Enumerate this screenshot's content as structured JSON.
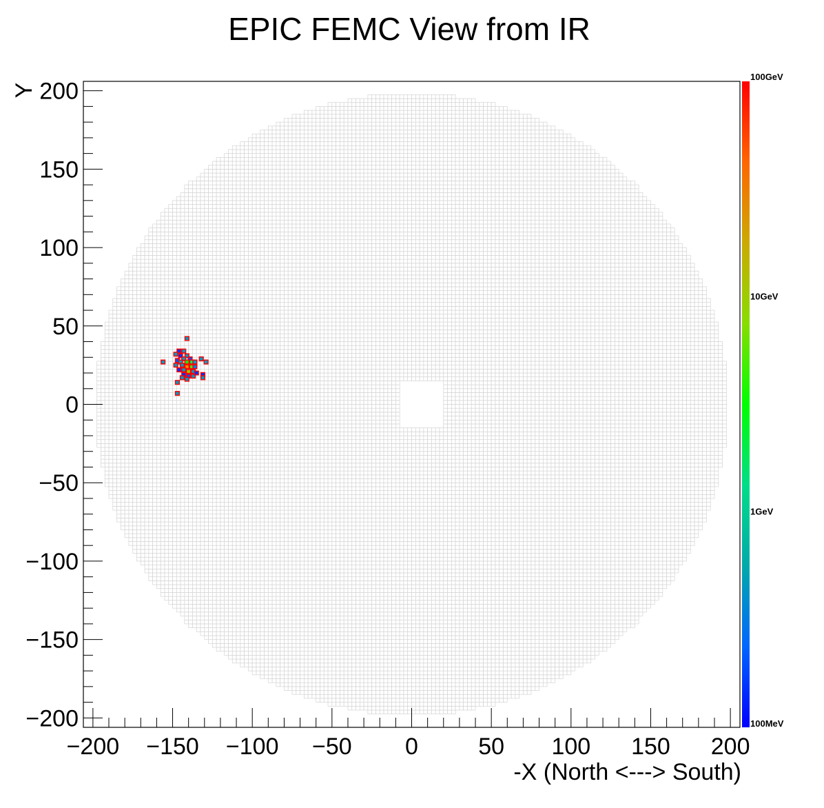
{
  "chart_data": {
    "type": "heatmap",
    "title": "EPIC FEMC View from IR",
    "xlabel": "-X (North <---> South)",
    "ylabel": "Y",
    "xlim": [
      -206,
      206
    ],
    "ylim": [
      -206,
      206
    ],
    "x_ticks": [
      -200,
      -150,
      -100,
      -50,
      0,
      50,
      100,
      150,
      200
    ],
    "y_ticks": [
      -200,
      -150,
      -100,
      -50,
      0,
      50,
      100,
      150,
      200
    ],
    "x_tick_labels": [
      "−200",
      "−150",
      "−100",
      "−50",
      "0",
      "50",
      "100",
      "150",
      "200"
    ],
    "y_tick_labels": [
      "−200",
      "−150",
      "−100",
      "−50",
      "0",
      "50",
      "100",
      "150",
      "200"
    ],
    "colorbar": {
      "scale": "log",
      "range_gev": [
        0.1,
        100
      ],
      "labels": [
        "100GeV",
        "10GeV",
        "1GeV",
        "100MeV"
      ],
      "label_values_gev": [
        100,
        10,
        1,
        0.1
      ],
      "colors": [
        "#0000ff",
        "#0066ff",
        "#00aaaa",
        "#00dd88",
        "#00ff00",
        "#88dd00",
        "#ccaa00",
        "#ff6600",
        "#ff0000"
      ]
    },
    "detector": {
      "cell_size": 2.5,
      "outer_radius": 198,
      "beam_hole": {
        "x": [
          -8,
          20
        ],
        "y": [
          -15,
          15
        ]
      },
      "cell_color": "#d4d4d4"
    },
    "hits": [
      {
        "x": -141,
        "y": 42,
        "e": 0.45
      },
      {
        "x": -156,
        "y": 27,
        "e": 0.45
      },
      {
        "x": -132,
        "y": 29,
        "e": 0.45
      },
      {
        "x": -129,
        "y": 27,
        "e": 0.45
      },
      {
        "x": -146,
        "y": 34,
        "e": 0.15
      },
      {
        "x": -143,
        "y": 34,
        "e": 0.45
      },
      {
        "x": -148,
        "y": 32,
        "e": 0.45
      },
      {
        "x": -145,
        "y": 31,
        "e": 0.15
      },
      {
        "x": -141,
        "y": 31,
        "e": 0.45
      },
      {
        "x": -139,
        "y": 29,
        "e": 0.2
      },
      {
        "x": -143,
        "y": 29,
        "e": 0.45
      },
      {
        "x": -147,
        "y": 28,
        "e": 0.2
      },
      {
        "x": -145,
        "y": 27,
        "e": 0.45
      },
      {
        "x": -141,
        "y": 27,
        "e": 3
      },
      {
        "x": -138,
        "y": 27,
        "e": 2
      },
      {
        "x": -136,
        "y": 27,
        "e": 0.45
      },
      {
        "x": -148,
        "y": 25,
        "e": 0.45
      },
      {
        "x": -144,
        "y": 25,
        "e": 0.45
      },
      {
        "x": -141,
        "y": 24,
        "e": 25
      },
      {
        "x": -138,
        "y": 24,
        "e": 5
      },
      {
        "x": -136,
        "y": 24,
        "e": 0.3
      },
      {
        "x": -146,
        "y": 22,
        "e": 0.15
      },
      {
        "x": -143,
        "y": 22,
        "e": 0.45
      },
      {
        "x": -140,
        "y": 21,
        "e": 10
      },
      {
        "x": -137,
        "y": 21,
        "e": 0.45
      },
      {
        "x": -143,
        "y": 19,
        "e": 0.15
      },
      {
        "x": -140,
        "y": 18,
        "e": 0.2
      },
      {
        "x": -137,
        "y": 18,
        "e": 0.45
      },
      {
        "x": -135,
        "y": 20,
        "e": 0.15
      },
      {
        "x": -131,
        "y": 19,
        "e": 0.15
      },
      {
        "x": -131,
        "y": 17,
        "e": 0.45
      },
      {
        "x": -141,
        "y": 16,
        "e": 0.45
      },
      {
        "x": -144,
        "y": 17,
        "e": 0.45
      },
      {
        "x": -147,
        "y": 14,
        "e": 0.45
      },
      {
        "x": -147,
        "y": 7,
        "e": 0.45
      }
    ]
  }
}
